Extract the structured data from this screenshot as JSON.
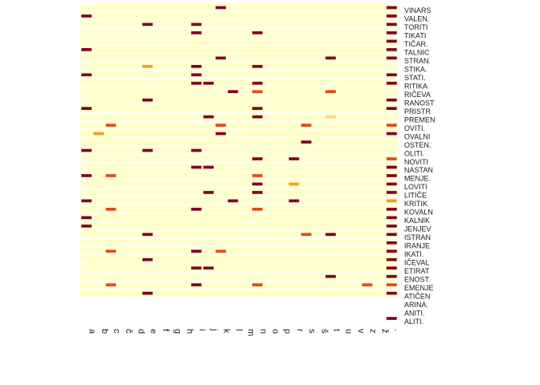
{
  "chart_data": {
    "type": "heatmap",
    "title": "",
    "xlabel": "",
    "ylabel": "",
    "columns": [
      "a",
      "b",
      "c",
      "č",
      "d",
      "e",
      "f",
      "g",
      "h",
      "i",
      "j",
      "k",
      "l",
      "m",
      "n",
      "o",
      "p",
      "r",
      "s",
      "š",
      "t",
      "u",
      "v",
      "z",
      "ž",
      "."
    ],
    "row_labels": [
      "VINARS",
      "VALEN.",
      "TORITI",
      "TIKATI",
      "TIČAR.",
      "TALNIC",
      "STRAN.",
      "STIKA.",
      "STATI.",
      "RITIKA",
      "RIČEVA",
      "RANOST",
      "PRISTR",
      "PREMEN",
      "OVITI.",
      "OVALNI",
      "OSTEN.",
      "OLITI.",
      "NOVITI",
      "NASTAN",
      "MENJE.",
      "LOVITI",
      "LITIČE",
      "KRITIK",
      "KOVALN",
      "KALNIK",
      "JENJEV",
      "ISTRAN",
      "IRANJE",
      "IKATI.",
      "IČEVAL",
      "ETIRAT",
      "ENOST.",
      "EMENJE",
      "ATIČEN",
      "ARINA.",
      "ANITI.",
      "ALITI."
    ],
    "value_scale": {
      "min": 0,
      "max": 1,
      "colors": [
        "#ffffcc",
        "#ffd966",
        "#f29e26",
        "#e24a1a",
        "#800020"
      ]
    },
    "background_color": "#ffffcc",
    "marks": [
      {
        "row": "VINARS",
        "col": "k",
        "value": 0.95
      },
      {
        "row": "VINARS",
        "col": ".",
        "value": 1.0
      },
      {
        "row": "VALEN.",
        "col": "a",
        "value": 0.95
      },
      {
        "row": "VALEN.",
        "col": ".",
        "value": 1.0
      },
      {
        "row": "TORITI",
        "col": "i",
        "value": 1.0
      },
      {
        "row": "TORITI",
        "col": "e",
        "value": 0.9
      },
      {
        "row": "TORITI",
        "col": ".",
        "value": 1.0
      },
      {
        "row": "TIKATI",
        "col": "i",
        "value": 0.95
      },
      {
        "row": "TIKATI",
        "col": "n",
        "value": 0.95
      },
      {
        "row": "TIKATI",
        "col": ".",
        "value": 1.0
      },
      {
        "row": "TIČAR.",
        "col": ".",
        "value": 1.0
      },
      {
        "row": "TALNIC",
        "col": "a",
        "value": 0.95
      },
      {
        "row": "TALNIC",
        "col": ".",
        "value": 1.0
      },
      {
        "row": "STRAN.",
        "col": "k",
        "value": 0.95
      },
      {
        "row": "STRAN.",
        "col": "t",
        "value": 0.9
      },
      {
        "row": "STRAN.",
        "col": ".",
        "value": 1.0
      },
      {
        "row": "STIKA.",
        "col": "e",
        "value": 0.45
      },
      {
        "row": "STIKA.",
        "col": "i",
        "value": 0.95
      },
      {
        "row": "STIKA.",
        "col": "n",
        "value": 0.95
      },
      {
        "row": "STATI.",
        "col": "a",
        "value": 0.95
      },
      {
        "row": "STATI.",
        "col": "i",
        "value": 0.95
      },
      {
        "row": "STATI.",
        "col": ".",
        "value": 1.0
      },
      {
        "row": "RITIKA",
        "col": "i",
        "value": 0.95
      },
      {
        "row": "RITIKA",
        "col": "j",
        "value": 0.95
      },
      {
        "row": "RITIKA",
        "col": "n",
        "value": 0.95
      },
      {
        "row": "RITIKA",
        "col": ".",
        "value": 1.0
      },
      {
        "row": "RIČEVA",
        "col": "l",
        "value": 0.95
      },
      {
        "row": "RIČEVA",
        "col": "n",
        "value": 0.7
      },
      {
        "row": "RIČEVA",
        "col": "t",
        "value": 0.7
      },
      {
        "row": "RANOST",
        "col": "e",
        "value": 0.95
      },
      {
        "row": "RANOST",
        "col": ".",
        "value": 1.0
      },
      {
        "row": "PRISTR",
        "col": "a",
        "value": 1.0
      },
      {
        "row": "PRISTR",
        "col": "n",
        "value": 0.95
      },
      {
        "row": "PRISTR",
        "col": ".",
        "value": 0.95
      },
      {
        "row": "PREMEN",
        "col": "j",
        "value": 0.95
      },
      {
        "row": "PREMEN",
        "col": "n",
        "value": 1.0
      },
      {
        "row": "PREMEN",
        "col": "t",
        "value": 0.3
      },
      {
        "row": "OVITI.",
        "col": "c",
        "value": 0.7
      },
      {
        "row": "OVITI.",
        "col": "k",
        "value": 0.7
      },
      {
        "row": "OVITI.",
        "col": "s",
        "value": 0.75
      },
      {
        "row": "OVITI.",
        "col": ".",
        "value": 0.7
      },
      {
        "row": "OVALNI",
        "col": "b",
        "value": 0.45
      },
      {
        "row": "OVALNI",
        "col": "k",
        "value": 0.95
      },
      {
        "row": "OVALNI",
        "col": ".",
        "value": 1.0
      },
      {
        "row": "OSTEN.",
        "col": "s",
        "value": 0.95
      },
      {
        "row": "OLITI.",
        "col": "a",
        "value": 0.95
      },
      {
        "row": "OLITI.",
        "col": "i",
        "value": 0.95
      },
      {
        "row": "OLITI.",
        "col": "e",
        "value": 0.95
      },
      {
        "row": "NOVITI",
        "col": "n",
        "value": 0.95
      },
      {
        "row": "NOVITI",
        "col": "r",
        "value": 0.95
      },
      {
        "row": "NOVITI",
        "col": ".",
        "value": 0.65
      },
      {
        "row": "NASTAN",
        "col": "i",
        "value": 0.95
      },
      {
        "row": "NASTAN",
        "col": "j",
        "value": 0.95
      },
      {
        "row": "NASTAN",
        "col": ".",
        "value": 0.95
      },
      {
        "row": "MENJE.",
        "col": "a",
        "value": 0.95
      },
      {
        "row": "MENJE.",
        "col": "c",
        "value": 0.7
      },
      {
        "row": "MENJE.",
        "col": "n",
        "value": 0.7
      },
      {
        "row": "MENJE.",
        "col": ".",
        "value": 1.0
      },
      {
        "row": "LOVITI",
        "col": "n",
        "value": 0.95
      },
      {
        "row": "LOVITI",
        "col": "r",
        "value": 0.5
      },
      {
        "row": "LOVITI",
        "col": ".",
        "value": 1.0
      },
      {
        "row": "LITIČE",
        "col": "j",
        "value": 0.95
      },
      {
        "row": "LITIČE",
        "col": "n",
        "value": 0.95
      },
      {
        "row": "LITIČE",
        "col": ".",
        "value": 0.95
      },
      {
        "row": "KRITIK",
        "col": "a",
        "value": 0.95
      },
      {
        "row": "KRITIK",
        "col": "l",
        "value": 0.95
      },
      {
        "row": "KRITIK",
        "col": "r",
        "value": 0.95
      },
      {
        "row": "KRITIK",
        "col": ".",
        "value": 0.45
      },
      {
        "row": "KOVALN",
        "col": "c",
        "value": 0.7
      },
      {
        "row": "KOVALN",
        "col": "i",
        "value": 0.95
      },
      {
        "row": "KOVALN",
        "col": "n",
        "value": 0.7
      },
      {
        "row": "KOVALN",
        "col": ".",
        "value": 1.0
      },
      {
        "row": "KALNIK",
        "col": "a",
        "value": 0.95
      },
      {
        "row": "KALNIK",
        "col": ".",
        "value": 0.95
      },
      {
        "row": "JENJEV",
        "col": "a",
        "value": 0.95
      },
      {
        "row": "JENJEV",
        "col": ".",
        "value": 0.95
      },
      {
        "row": "ISTRAN",
        "col": "e",
        "value": 0.95
      },
      {
        "row": "ISTRAN",
        "col": "s",
        "value": 0.7
      },
      {
        "row": "ISTRAN",
        "col": "t",
        "value": 0.95
      },
      {
        "row": "ISTRAN",
        "col": ".",
        "value": 1.0
      },
      {
        "row": "IRANJE",
        "col": ".",
        "value": 1.0
      },
      {
        "row": "IKATI.",
        "col": "i",
        "value": 0.95
      },
      {
        "row": "IKATI.",
        "col": "c",
        "value": 0.7
      },
      {
        "row": "IKATI.",
        "col": "k",
        "value": 0.7
      },
      {
        "row": "IKATI.",
        "col": ".",
        "value": 1.0
      },
      {
        "row": "IČEVAL",
        "col": "e",
        "value": 0.95
      },
      {
        "row": "IČEVAL",
        "col": ".",
        "value": 1.0
      },
      {
        "row": "ETIRAT",
        "col": "i",
        "value": 0.95
      },
      {
        "row": "ETIRAT",
        "col": "j",
        "value": 0.95
      },
      {
        "row": "ETIRAT",
        "col": ".",
        "value": 1.0
      },
      {
        "row": "ENOST.",
        "col": "t",
        "value": 0.95
      },
      {
        "row": "ENOST.",
        "col": ".",
        "value": 1.0
      },
      {
        "row": "EMENJE",
        "col": "c",
        "value": 0.7
      },
      {
        "row": "EMENJE",
        "col": "n",
        "value": 0.7
      },
      {
        "row": "EMENJE",
        "col": "z",
        "value": 0.75
      },
      {
        "row": "EMENJE",
        "col": ".",
        "value": 0.7
      },
      {
        "row": "EMENJE",
        "col": "i",
        "value": 0.95
      },
      {
        "row": "ATIČEN",
        "col": "e",
        "value": 0.95
      },
      {
        "row": "ATIČEN",
        "col": ".",
        "value": 0.95
      },
      {
        "row": "ALITI.",
        "col": ".",
        "value": 0.95
      }
    ]
  }
}
